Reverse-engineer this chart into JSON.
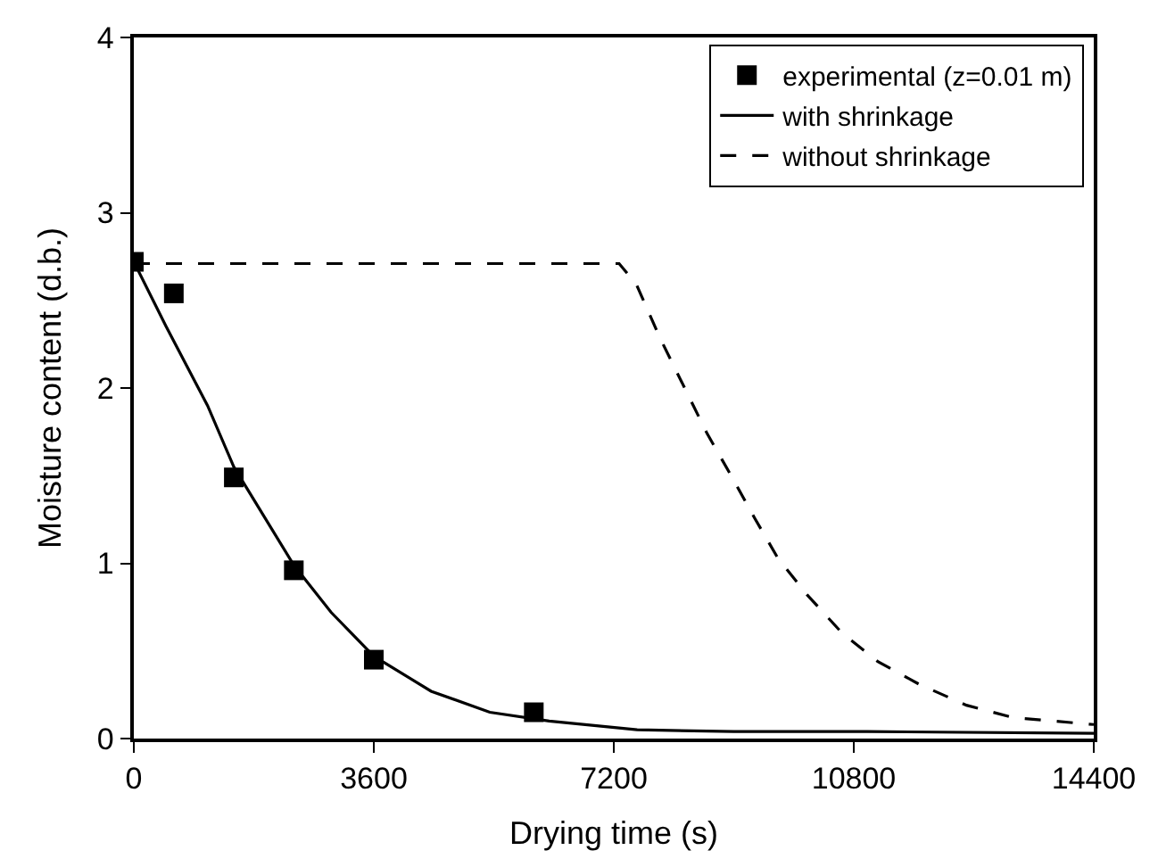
{
  "chart_data": {
    "type": "line",
    "xlabel": "Drying time (s)",
    "ylabel": "Moisture content (d.b.)",
    "xlim": [
      0,
      14400
    ],
    "xticks": [
      0,
      3600,
      7200,
      10800,
      14400
    ],
    "ylim": [
      0,
      4
    ],
    "yticks": [
      0,
      1,
      2,
      3,
      4
    ],
    "legend": "top right",
    "series": [
      {
        "name": "experimental (z=0.01 m)",
        "type": "scatter",
        "marker": "square",
        "color": "#000000",
        "x": [
          0,
          600,
          1500,
          2400,
          3600,
          6000
        ],
        "values": [
          2.72,
          2.54,
          1.49,
          0.96,
          0.45,
          0.15
        ]
      },
      {
        "name": "with shrinkage",
        "line_style": "solid",
        "color": "#000000",
        "x": [
          0,
          486,
          1106,
          1500,
          2400,
          2960,
          3600,
          4460,
          5340,
          6230,
          7550,
          9000,
          11000,
          14400
        ],
        "values": [
          2.72,
          2.35,
          1.9,
          1.55,
          0.99,
          0.72,
          0.47,
          0.27,
          0.15,
          0.1,
          0.05,
          0.04,
          0.04,
          0.03
        ]
      },
      {
        "name": "without shrinkage",
        "line_style": "dashed",
        "color": "#000000",
        "x": [
          0,
          7280,
          7540,
          7900,
          8250,
          8600,
          8960,
          9310,
          9660,
          10100,
          10630,
          11160,
          11780,
          12490,
          13190,
          14400
        ],
        "values": [
          2.71,
          2.71,
          2.59,
          2.28,
          2.01,
          1.74,
          1.5,
          1.26,
          1.03,
          0.82,
          0.6,
          0.44,
          0.31,
          0.19,
          0.12,
          0.08
        ]
      }
    ]
  }
}
